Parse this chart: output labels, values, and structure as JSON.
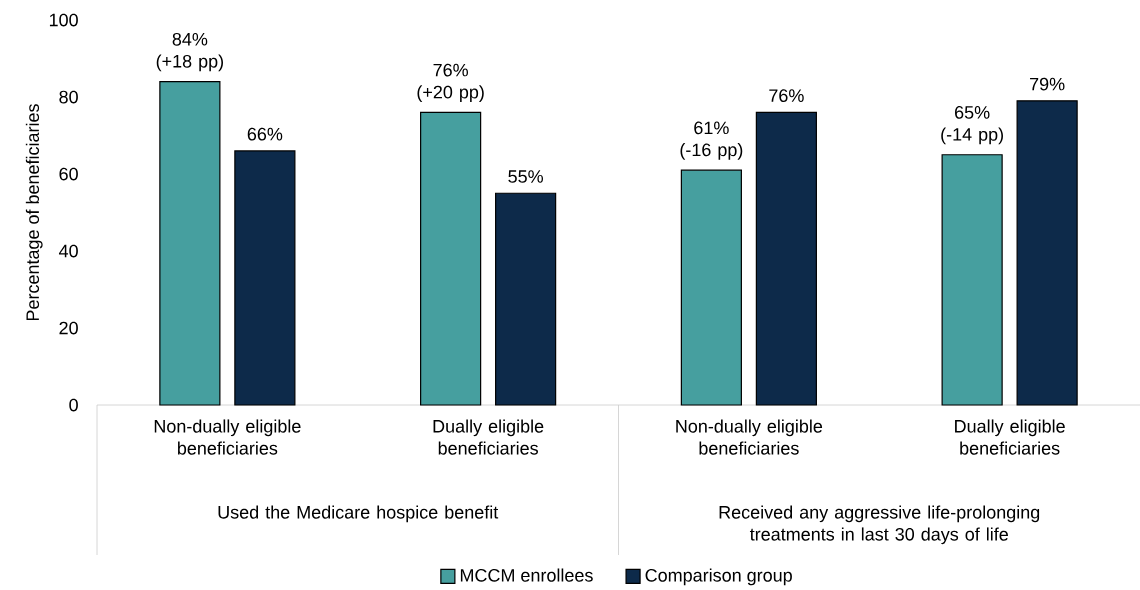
{
  "chart_data": {
    "type": "bar",
    "ylabel": "Percentage of beneficiaries",
    "categories": [
      "Non-dually eligible beneficiaries",
      "Dually eligible beneficiaries",
      "Non-dually eligible beneficiaries",
      "Dually eligible beneficiaries"
    ],
    "series": [
      {
        "name": "MCCM enrollees",
        "color": "#469f9f",
        "values": [
          84,
          76,
          61,
          65
        ],
        "value_labels": [
          "84% (+18 pp)",
          "76% (+20 pp)",
          "61% (-16 pp)",
          "65% (-14 pp)"
        ]
      },
      {
        "name": "Comparison group",
        "color": "#0d2a4a",
        "values": [
          66,
          55,
          76,
          79
        ],
        "value_labels": [
          "66%",
          "55%",
          "76%",
          "79%"
        ]
      }
    ],
    "annotations": [
      "Used the Medicare hospice benefit",
      "Received any aggressive life-prolonging treatments in last 30 days of life"
    ],
    "ylim": [
      0,
      100
    ],
    "yticks": [
      0,
      20,
      40,
      60,
      80,
      100
    ],
    "legend": "bottom"
  }
}
